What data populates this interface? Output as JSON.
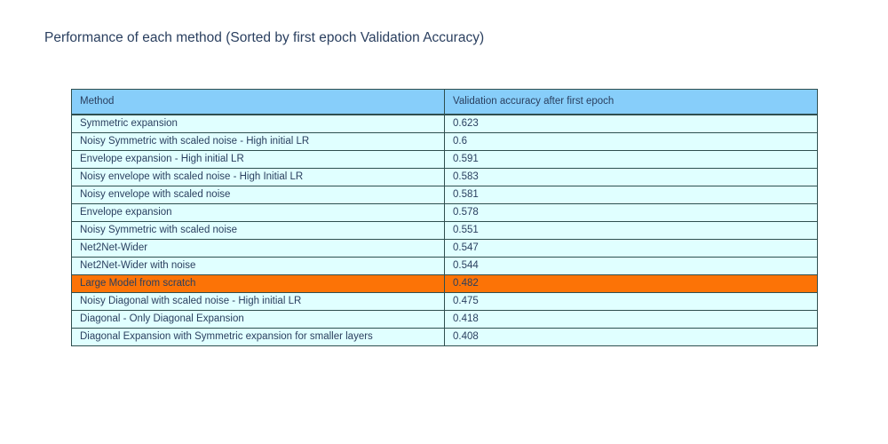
{
  "title": "Performance of each method (Sorted by first epoch Validation Accuracy)",
  "colors": {
    "background": "#FFFFFF",
    "title_text": "#2A3F5F",
    "header_fill": "#87CEFA",
    "cell_fill": "#E0FFFF",
    "highlight_fill": "#FC7306",
    "border": "#2F4F4F",
    "cell_text": "#2A3F5F"
  },
  "chart_data": {
    "type": "table",
    "title": "Performance of each method (Sorted by first epoch Validation Accuracy)",
    "columns": [
      "Method",
      "Validation accuracy after first epoch"
    ],
    "rows": [
      {
        "method": "Symmetric expansion",
        "value": "0.623",
        "highlight": false
      },
      {
        "method": "Noisy Symmetric with scaled noise - High initial LR",
        "value": "0.6",
        "highlight": false
      },
      {
        "method": "Envelope expansion - High initial LR",
        "value": "0.591",
        "highlight": false
      },
      {
        "method": "Noisy envelope with scaled noise - High Initial LR",
        "value": "0.583",
        "highlight": false
      },
      {
        "method": "Noisy envelope with scaled noise",
        "value": "0.581",
        "highlight": false
      },
      {
        "method": "Envelope expansion",
        "value": "0.578",
        "highlight": false
      },
      {
        "method": "Noisy Symmetric with scaled noise",
        "value": "0.551",
        "highlight": false
      },
      {
        "method": "Net2Net-Wider",
        "value": "0.547",
        "highlight": false
      },
      {
        "method": "Net2Net-Wider with noise",
        "value": "0.544",
        "highlight": false
      },
      {
        "method": "Large Model from scratch",
        "value": "0.482",
        "highlight": true
      },
      {
        "method": "Noisy Diagonal with scaled noise - High initial LR",
        "value": "0.475",
        "highlight": false
      },
      {
        "method": "Diagonal - Only Diagonal Expansion",
        "value": "0.418",
        "highlight": false
      },
      {
        "method": "Diagonal Expansion with Symmetric expansion for smaller layers",
        "value": "0.408",
        "highlight": false
      }
    ],
    "layout_hints": {
      "legend": "none",
      "grid": "table borders on",
      "highlighted_row": "Large Model from scratch",
      "sort_order": "descending by validation accuracy"
    }
  }
}
